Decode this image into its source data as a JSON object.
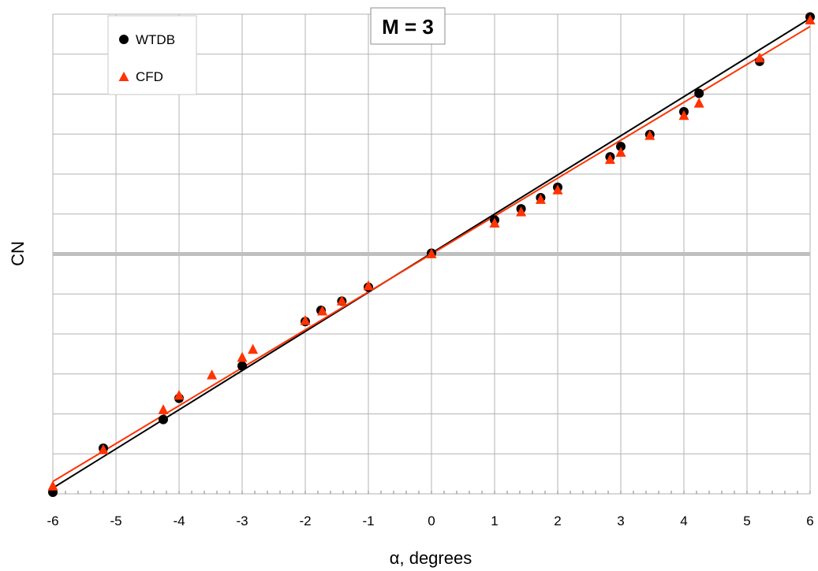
{
  "chart_data": {
    "type": "scatter",
    "title": "M = 3",
    "xlabel": "α, degrees",
    "ylabel": "CN",
    "xlim": [
      -6,
      6
    ],
    "ylim": [
      -12,
      12
    ],
    "xticks": [
      "-6",
      "-5",
      "-4",
      "-3",
      "-2",
      "-1",
      "0",
      "1",
      "2",
      "3",
      "4",
      "5",
      "6"
    ],
    "y_tick_labels_shown": false,
    "grid": true,
    "zero_line_color": "#bfbfbf",
    "legend": {
      "position": "top-left"
    },
    "series": [
      {
        "name": "WTDB",
        "marker": "circle",
        "color": "#000000",
        "trend_line": {
          "slope": 1.9583,
          "intercept": 0.04
        },
        "x": [
          -6,
          -5.2,
          -4.25,
          -4,
          -3,
          -2,
          -1.75,
          -1.42,
          -1,
          0,
          1,
          1.42,
          1.73,
          2,
          2.83,
          3,
          3.46,
          4,
          4.24,
          5.2,
          6
        ],
        "y": [
          -11.92,
          -9.72,
          -8.28,
          -7.22,
          -5.6,
          -3.38,
          -2.82,
          -2.36,
          -1.66,
          0.04,
          1.7,
          2.26,
          2.82,
          3.34,
          4.86,
          5.38,
          5.98,
          7.12,
          8.04,
          9.64,
          11.86
        ]
      },
      {
        "name": "CFD",
        "marker": "triangle",
        "color": "#ff3300",
        "trend_line": {
          "slope": 1.8975,
          "intercept": 0.0
        },
        "x": [
          -6,
          -5.2,
          -4.25,
          -4,
          -3.48,
          -3,
          -2.83,
          -2,
          -1.73,
          -1.42,
          -1,
          0,
          1,
          1.42,
          1.73,
          2,
          2.83,
          3,
          3.46,
          4,
          4.24,
          5.2,
          6
        ],
        "y": [
          -11.62,
          -9.8,
          -7.8,
          -7.08,
          -6.06,
          -5.18,
          -4.78,
          -3.34,
          -2.86,
          -2.36,
          -1.6,
          0,
          1.54,
          2.1,
          2.72,
          3.2,
          4.72,
          5.08,
          5.92,
          6.92,
          7.54,
          9.8,
          11.7
        ]
      }
    ]
  }
}
